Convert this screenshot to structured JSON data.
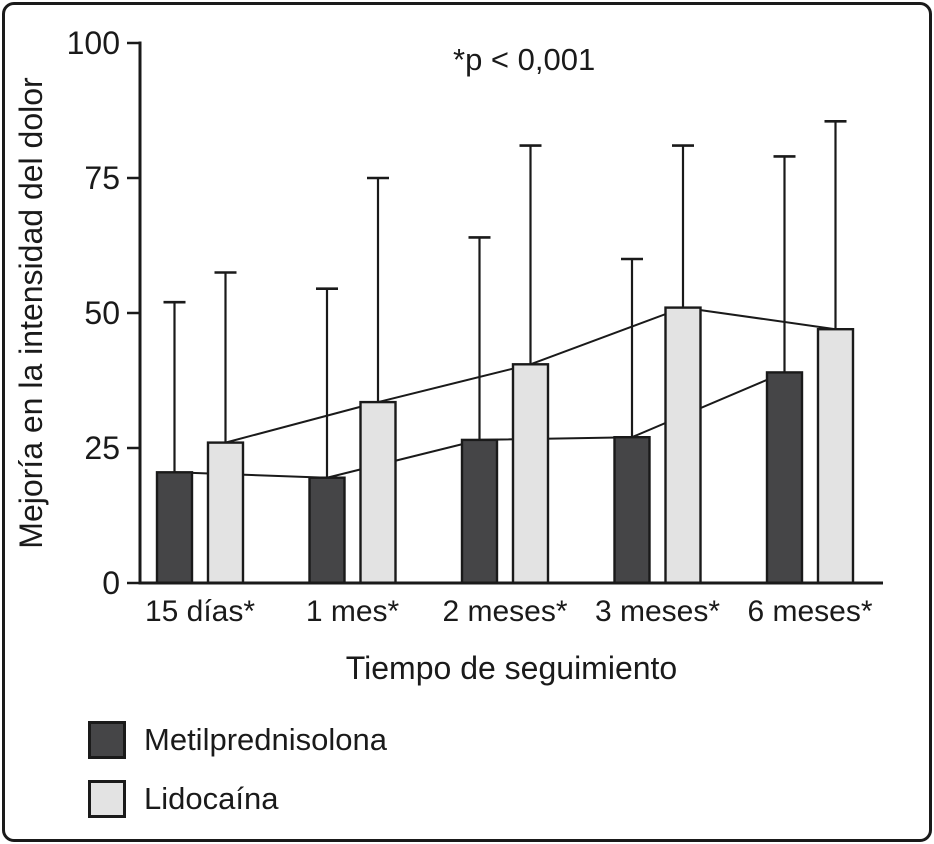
{
  "figure": {
    "frame_color": "#1a1a1a",
    "text_color": "#1a1a1a",
    "background": "#ffffff"
  },
  "chart_data": {
    "type": "bar",
    "title": "",
    "annotation": "*p < 0,001",
    "xlabel": "Tiempo de seguimiento",
    "ylabel": "Mejoría en la intensidad del dolor",
    "categories": [
      "15 días*",
      "1 mes*",
      "2 meses*",
      "3 meses*",
      "6 meses*"
    ],
    "series": [
      {
        "name": "Metilprednisolona",
        "color": "#454547",
        "values": [
          20.5,
          19.5,
          26.5,
          27,
          39
        ],
        "error_top": [
          52,
          54.5,
          64,
          60,
          79
        ]
      },
      {
        "name": "Lidocaína",
        "color": "#e3e3e3",
        "values": [
          26,
          33.5,
          40.5,
          51,
          47
        ],
        "error_top": [
          57.5,
          75,
          81,
          81,
          85.5
        ]
      }
    ],
    "connect_lines": true,
    "error_bars": "upper-only",
    "ylim": [
      0,
      100
    ],
    "yticks": [
      0,
      25,
      50,
      75,
      100
    ],
    "grid": false,
    "legend_position": "bottom-left"
  }
}
